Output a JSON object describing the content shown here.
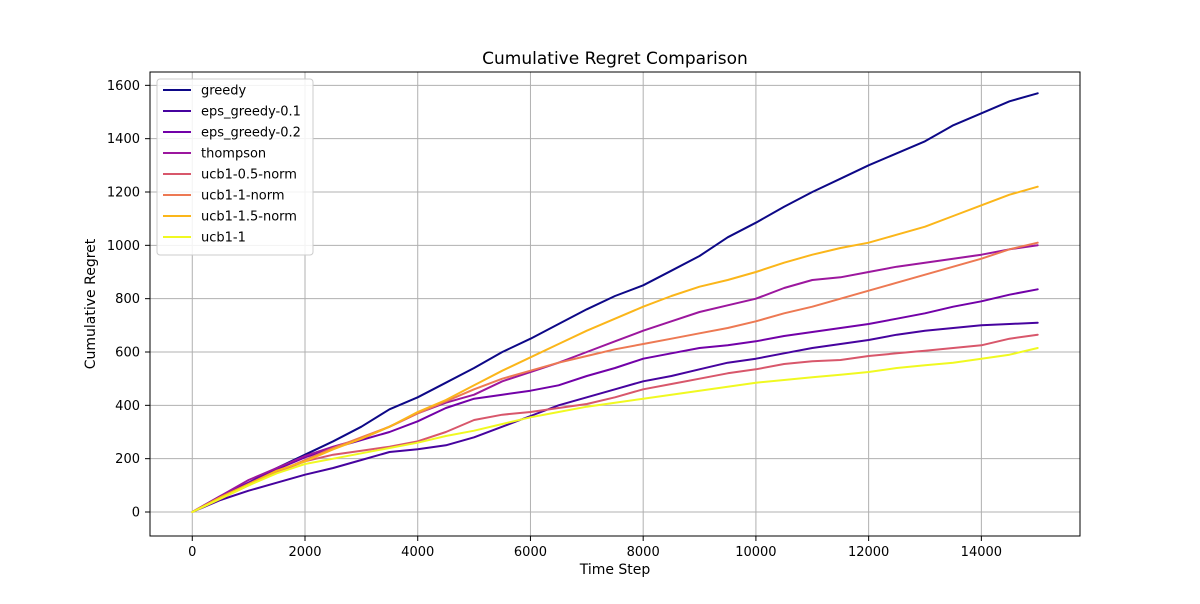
{
  "chart_data": {
    "type": "line",
    "title": "Cumulative Regret Comparison",
    "xlabel": "Time Step",
    "ylabel": "Cumulative Regret",
    "xlim": [
      -750,
      15750
    ],
    "ylim": [
      -90,
      1650
    ],
    "xticks": [
      0,
      2000,
      4000,
      6000,
      8000,
      10000,
      12000,
      14000
    ],
    "yticks": [
      0,
      200,
      400,
      600,
      800,
      1000,
      1200,
      1400,
      1600
    ],
    "grid": true,
    "legend_position": "top-left",
    "series": [
      {
        "name": "greedy",
        "color": "#0d0887",
        "x": [
          0,
          500,
          1000,
          1500,
          2000,
          2500,
          3000,
          3500,
          4000,
          4500,
          5000,
          5500,
          6000,
          6500,
          7000,
          7500,
          8000,
          8500,
          9000,
          9500,
          10000,
          10500,
          11000,
          11500,
          12000,
          12500,
          13000,
          13500,
          14000,
          14500,
          15000
        ],
        "y": [
          0,
          55,
          110,
          165,
          215,
          265,
          320,
          385,
          430,
          485,
          540,
          600,
          650,
          705,
          760,
          810,
          850,
          905,
          960,
          1030,
          1085,
          1145,
          1200,
          1250,
          1300,
          1345,
          1390,
          1450,
          1495,
          1540,
          1570
        ]
      },
      {
        "name": "eps_greedy-0.1",
        "color": "#46039f",
        "x": [
          0,
          500,
          1000,
          1500,
          2000,
          2500,
          3000,
          3500,
          4000,
          4500,
          5000,
          5500,
          6000,
          6500,
          7000,
          7500,
          8000,
          8500,
          9000,
          9500,
          10000,
          10500,
          11000,
          11500,
          12000,
          12500,
          13000,
          13500,
          14000,
          14500,
          15000
        ],
        "y": [
          0,
          45,
          80,
          110,
          140,
          165,
          195,
          225,
          235,
          250,
          280,
          320,
          360,
          400,
          430,
          460,
          490,
          510,
          535,
          560,
          575,
          595,
          615,
          630,
          645,
          665,
          680,
          690,
          700,
          705,
          710
        ]
      },
      {
        "name": "eps_greedy-0.2",
        "color": "#7201a8",
        "x": [
          0,
          500,
          1000,
          1500,
          2000,
          2500,
          3000,
          3500,
          4000,
          4500,
          5000,
          5500,
          6000,
          6500,
          7000,
          7500,
          8000,
          8500,
          9000,
          9500,
          10000,
          10500,
          11000,
          11500,
          12000,
          12500,
          13000,
          13500,
          14000,
          14500,
          15000
        ],
        "y": [
          0,
          60,
          110,
          160,
          205,
          240,
          270,
          300,
          340,
          390,
          425,
          440,
          455,
          475,
          510,
          540,
          575,
          595,
          615,
          625,
          640,
          660,
          675,
          690,
          705,
          725,
          745,
          770,
          790,
          815,
          835
        ]
      },
      {
        "name": "thompson",
        "color": "#9c179e",
        "x": [
          0,
          500,
          1000,
          1500,
          2000,
          2500,
          3000,
          3500,
          4000,
          4500,
          5000,
          5500,
          6000,
          6500,
          7000,
          7500,
          8000,
          8500,
          9000,
          9500,
          10000,
          10500,
          11000,
          11500,
          12000,
          12500,
          13000,
          13500,
          14000,
          14500,
          15000
        ],
        "y": [
          0,
          60,
          120,
          165,
          210,
          245,
          275,
          320,
          370,
          410,
          440,
          490,
          525,
          560,
          600,
          640,
          680,
          715,
          750,
          775,
          800,
          840,
          870,
          880,
          900,
          920,
          935,
          950,
          965,
          985,
          1000
        ]
      },
      {
        "name": "ucb1-0.5-norm",
        "color": "#d8576b",
        "x": [
          0,
          500,
          1000,
          1500,
          2000,
          2500,
          3000,
          3500,
          4000,
          4500,
          5000,
          5500,
          6000,
          6500,
          7000,
          7500,
          8000,
          8500,
          9000,
          9500,
          10000,
          10500,
          11000,
          11500,
          12000,
          12500,
          13000,
          13500,
          14000,
          14500,
          15000
        ],
        "y": [
          0,
          50,
          100,
          150,
          190,
          215,
          230,
          245,
          265,
          300,
          345,
          365,
          375,
          390,
          405,
          430,
          460,
          480,
          500,
          520,
          535,
          555,
          565,
          570,
          585,
          595,
          605,
          615,
          625,
          650,
          665
        ]
      },
      {
        "name": "ucb1-1-norm",
        "color": "#ed7953",
        "x": [
          0,
          500,
          1000,
          1500,
          2000,
          2500,
          3000,
          3500,
          4000,
          4500,
          5000,
          5500,
          6000,
          6500,
          7000,
          7500,
          8000,
          8500,
          9000,
          9500,
          10000,
          10500,
          11000,
          11500,
          12000,
          12500,
          13000,
          13500,
          14000,
          14500,
          15000
        ],
        "y": [
          0,
          55,
          100,
          150,
          195,
          240,
          280,
          320,
          370,
          415,
          460,
          500,
          530,
          560,
          585,
          610,
          630,
          650,
          670,
          690,
          715,
          745,
          770,
          800,
          830,
          860,
          890,
          920,
          950,
          985,
          1010
        ]
      },
      {
        "name": "ucb1-1.5-norm",
        "color": "#fbb61a",
        "x": [
          0,
          500,
          1000,
          1500,
          2000,
          2500,
          3000,
          3500,
          4000,
          4500,
          5000,
          5500,
          6000,
          6500,
          7000,
          7500,
          8000,
          8500,
          9000,
          9500,
          10000,
          10500,
          11000,
          11500,
          12000,
          12500,
          13000,
          13500,
          14000,
          14500,
          15000
        ],
        "y": [
          0,
          55,
          105,
          155,
          190,
          235,
          275,
          320,
          375,
          420,
          475,
          530,
          580,
          630,
          680,
          725,
          770,
          810,
          845,
          870,
          900,
          935,
          965,
          990,
          1010,
          1040,
          1070,
          1110,
          1150,
          1190,
          1220
        ]
      },
      {
        "name": "ucb1-1",
        "color": "#f0f921",
        "x": [
          0,
          500,
          1000,
          1500,
          2000,
          2500,
          3000,
          3500,
          4000,
          4500,
          5000,
          5500,
          6000,
          6500,
          7000,
          7500,
          8000,
          8500,
          9000,
          9500,
          10000,
          10500,
          11000,
          11500,
          12000,
          12500,
          13000,
          13500,
          14000,
          14500,
          15000
        ],
        "y": [
          0,
          50,
          100,
          145,
          180,
          200,
          220,
          240,
          260,
          285,
          305,
          330,
          355,
          375,
          395,
          410,
          425,
          440,
          455,
          470,
          485,
          495,
          505,
          515,
          525,
          540,
          550,
          560,
          575,
          590,
          615
        ]
      }
    ]
  }
}
